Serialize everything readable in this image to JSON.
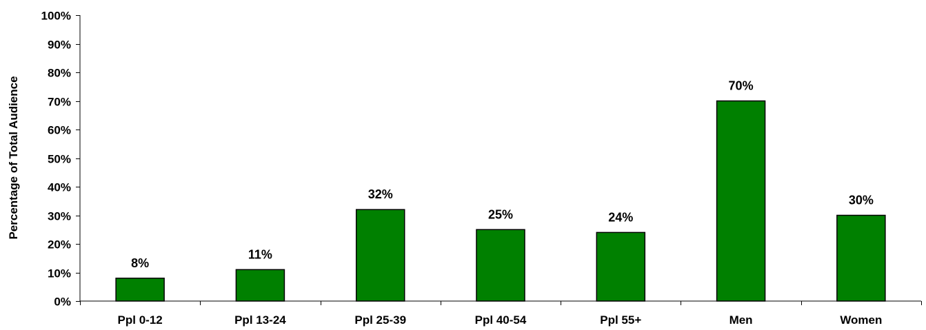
{
  "chart_data": {
    "type": "bar",
    "ylabel": "Percentage of Total Audience",
    "categories": [
      "Ppl 0-12",
      "Ppl 13-24",
      "Ppl 25-39",
      "Ppl 40-54",
      "Ppl 55+",
      "Men",
      "Women"
    ],
    "values": [
      8,
      11,
      32,
      25,
      24,
      70,
      30
    ],
    "value_labels": [
      "8%",
      "11%",
      "32%",
      "25%",
      "24%",
      "70%",
      "30%"
    ],
    "ylim": [
      0,
      100
    ],
    "yticks": [
      0,
      10,
      20,
      30,
      40,
      50,
      60,
      70,
      80,
      90,
      100
    ],
    "ytick_labels": [
      "0%",
      "10%",
      "20%",
      "30%",
      "40%",
      "50%",
      "60%",
      "70%",
      "80%",
      "90%",
      "100%"
    ],
    "bar_color": "#008000",
    "grid": false,
    "legend": "none"
  }
}
